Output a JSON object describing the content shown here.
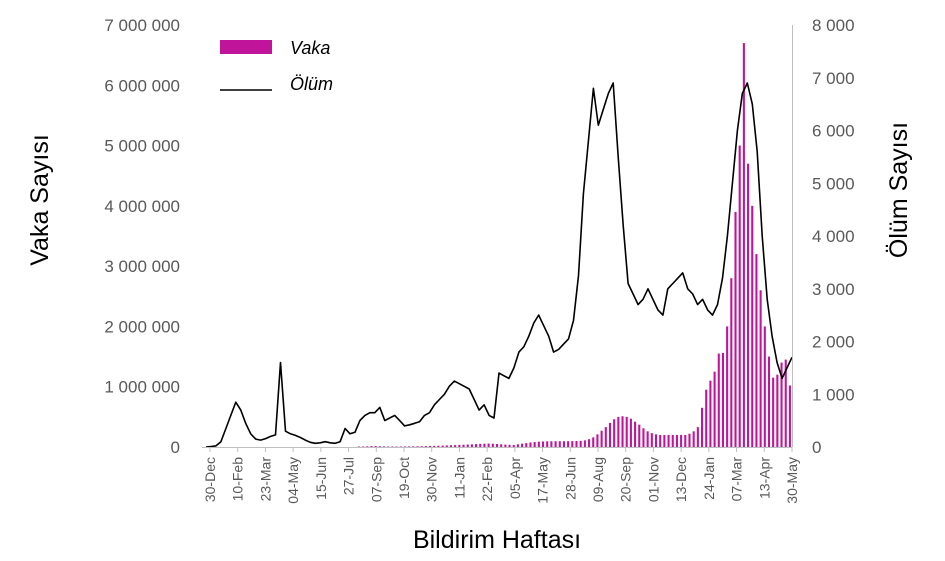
{
  "chart_data": {
    "type": "bar+line",
    "xlabel": "Bildirim Haftası",
    "ylabel_left": "Vaka Sayısı",
    "ylabel_right": "Ölüm Sayısı",
    "ylim_left": [
      0,
      7000000
    ],
    "ylim_right": [
      0,
      8000
    ],
    "yticks_left": [
      0,
      1000000,
      2000000,
      3000000,
      4000000,
      5000000,
      6000000,
      7000000
    ],
    "yticks_left_labels": [
      "0",
      "1 000 000",
      "2 000 000",
      "3 000 000",
      "4 000 000",
      "5 000 000",
      "6 000 000",
      "7 000 000"
    ],
    "yticks_right": [
      0,
      1000,
      2000,
      3000,
      4000,
      5000,
      6000,
      7000,
      8000
    ],
    "yticks_right_labels": [
      "0",
      "1 000",
      "2 000",
      "3 000",
      "4 000",
      "5 000",
      "6 000",
      "7 000",
      "8 000"
    ],
    "x_tick_labels": [
      "30-Dec",
      "10-Feb",
      "23-Mar",
      "04-May",
      "15-Jun",
      "27-Jul",
      "07-Sep",
      "19-Oct",
      "30-Nov",
      "11-Jan",
      "22-Feb",
      "05-Apr",
      "17-May",
      "28-Jun",
      "09-Aug",
      "20-Sep",
      "01-Nov",
      "13-Dec",
      "24-Jan",
      "07-Mar",
      "13-Apr",
      "30-May"
    ],
    "legend": {
      "position": "top-left",
      "entries": [
        "Vaka",
        "Ölüm"
      ]
    },
    "grid": false,
    "series": [
      {
        "name": "Vaka",
        "type": "bar",
        "axis": "left",
        "color": "#C0149A",
        "values": [
          0,
          0,
          0,
          0,
          0,
          0,
          0,
          0,
          0,
          0,
          0,
          0,
          0,
          0,
          0,
          0,
          0,
          0,
          0,
          0,
          0,
          0,
          0,
          0,
          0,
          0,
          0,
          0,
          0,
          0,
          0,
          0,
          0,
          0,
          0,
          0,
          0,
          5000,
          8000,
          12000,
          15000,
          15000,
          12000,
          10000,
          8000,
          8000,
          8000,
          8000,
          9000,
          10000,
          11000,
          12000,
          13000,
          15000,
          17000,
          19000,
          21000,
          23000,
          26000,
          29000,
          32000,
          35000,
          38000,
          41000,
          44000,
          48000,
          52000,
          55000,
          57000,
          55000,
          50000,
          45000,
          40000,
          36000,
          34000,
          45000,
          55000,
          65000,
          75000,
          82000,
          88000,
          92000,
          94000,
          95000,
          96000,
          96000,
          96000,
          97000,
          98000,
          100000,
          102000,
          110000,
          130000,
          160000,
          210000,
          270000,
          330000,
          400000,
          460000,
          500000,
          510000,
          500000,
          470000,
          420000,
          370000,
          310000,
          260000,
          230000,
          210000,
          200000,
          200000,
          200000,
          200000,
          200000,
          200000,
          200000,
          220000,
          260000,
          330000,
          650000,
          950000,
          1100000,
          1250000,
          1550000,
          1560000,
          2000000,
          2800000,
          3900000,
          5000000,
          6700000,
          4700000,
          4000000,
          3200000,
          2600000,
          2000000,
          1500000,
          1150000,
          1200000,
          1400000,
          1450000,
          1020000
        ]
      },
      {
        "name": "Ölüm",
        "type": "line",
        "axis": "right",
        "color": "#000000",
        "values": [
          0,
          10,
          20,
          100,
          350,
          600,
          850,
          700,
          450,
          250,
          150,
          130,
          160,
          200,
          230,
          1600,
          300,
          250,
          220,
          180,
          130,
          90,
          70,
          80,
          100,
          80,
          70,
          100,
          350,
          250,
          280,
          500,
          600,
          650,
          650,
          750,
          500,
          550,
          600,
          500,
          400,
          420,
          450,
          480,
          600,
          650,
          800,
          900,
          1000,
          1150,
          1250,
          1200,
          1150,
          1100,
          900,
          700,
          800,
          600,
          550,
          1400,
          1350,
          1300,
          1500,
          1800,
          1900,
          2100,
          2350,
          2500,
          2300,
          2100,
          1800,
          1850,
          1950,
          2050,
          2400,
          3250,
          4800,
          5800,
          6800,
          6100,
          6400,
          6700,
          6900,
          5500,
          4200,
          3100,
          2900,
          2700,
          2800,
          3000,
          2800,
          2600,
          2500,
          3000,
          3100,
          3200,
          3300,
          3000,
          2900,
          2700,
          2800,
          2600,
          2500,
          2700,
          3200,
          4000,
          5000,
          6000,
          6700,
          6900,
          6500,
          5600,
          4000,
          2800,
          2100,
          1600,
          1300,
          1500,
          1700
        ]
      }
    ]
  }
}
